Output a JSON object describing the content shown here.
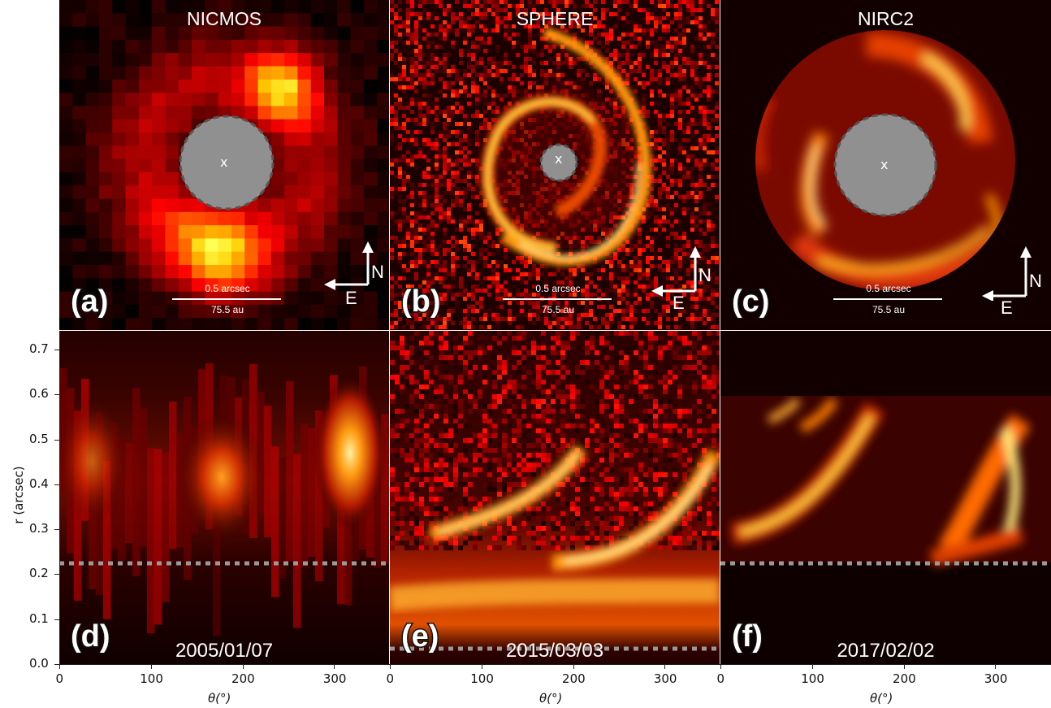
{
  "top_panels": [
    {
      "title": "NICMOS",
      "letter": "(a)",
      "scale_top": "0.5 arcsec",
      "scale_bottom": "75.5 au",
      "center_mark": "x",
      "north": "N",
      "east": "E"
    },
    {
      "title": "SPHERE",
      "letter": "(b)",
      "scale_top": "0.5 arcsec",
      "scale_bottom": "75.5 au",
      "center_mark": "x",
      "north": "N",
      "east": "E"
    },
    {
      "title": "NIRC2",
      "letter": "(c)",
      "scale_top": "0.5 arcsec",
      "scale_bottom": "75.5 au",
      "center_mark": "x",
      "north": "N",
      "east": "E"
    }
  ],
  "bottom_panels": [
    {
      "letter": "(d)",
      "date": "2005/01/07"
    },
    {
      "letter": "(e)",
      "date": "2015/03/03"
    },
    {
      "letter": "(f)",
      "date": "2017/02/02"
    }
  ],
  "axes": {
    "ylabel": "r (arcsec)",
    "xlabel": "θ(°)",
    "yticks": [
      "0.0",
      "0.1",
      "0.2",
      "0.3",
      "0.4",
      "0.5",
      "0.6",
      "0.7"
    ],
    "xticks": [
      "0",
      "100",
      "200",
      "300"
    ]
  },
  "colors": {
    "map_low": "#000000",
    "map_mid": "#c81d00",
    "map_high": "#fff7c0",
    "mask": "#909090"
  }
}
